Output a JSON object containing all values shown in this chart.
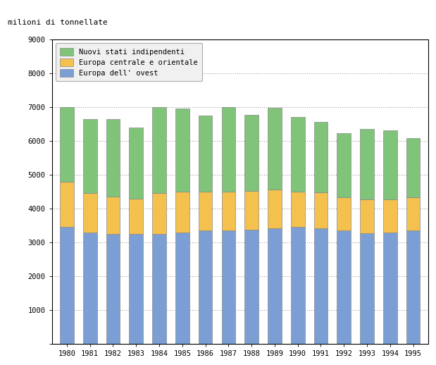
{
  "years": [
    1980,
    1981,
    1982,
    1983,
    1984,
    1985,
    1986,
    1987,
    1988,
    1989,
    1990,
    1991,
    1992,
    1993,
    1994,
    1995
  ],
  "europa_ovest": [
    3450,
    3300,
    3250,
    3250,
    3250,
    3300,
    3350,
    3350,
    3380,
    3420,
    3450,
    3420,
    3350,
    3280,
    3300,
    3350
  ],
  "europa_centrale": [
    1350,
    1150,
    1100,
    1050,
    1200,
    1200,
    1150,
    1150,
    1150,
    1150,
    1050,
    1050,
    980,
    980,
    970,
    980
  ],
  "nuovi_stati": [
    2200,
    2200,
    2300,
    2100,
    2550,
    2450,
    2250,
    2500,
    2250,
    2400,
    2200,
    2100,
    1900,
    2100,
    2050,
    1750
  ],
  "color_ovest": "#7b9fd4",
  "color_centrale": "#f5c14e",
  "color_nuovi": "#80c47a",
  "ylabel": "milioni di tonnellate",
  "ylim": [
    0,
    9000
  ],
  "yticks": [
    0,
    1000,
    2000,
    3000,
    4000,
    5000,
    6000,
    7000,
    8000,
    9000
  ],
  "legend_labels": [
    "Nuovi stati indipendenti",
    "Europa centrale e orientale",
    "Europa dell' ovest"
  ],
  "bg_color": "#ffffff",
  "grid_color": "#888888",
  "bar_edge_color": "#888888",
  "bar_width": 0.6
}
